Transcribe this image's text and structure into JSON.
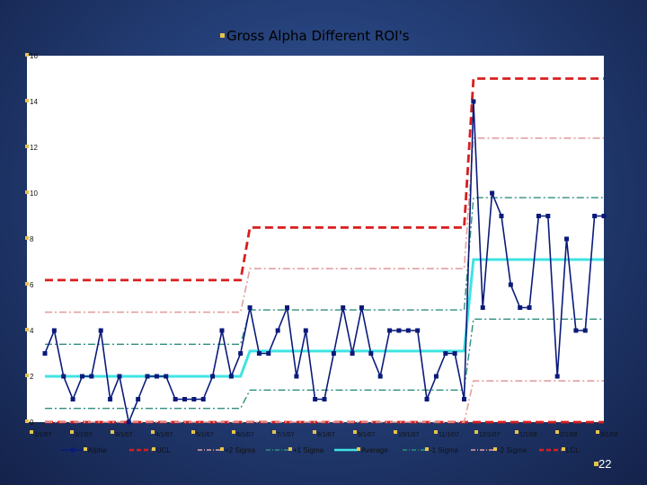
{
  "slide": {
    "page_number": "22"
  },
  "colors": {
    "plot_bg": "#ffffff",
    "alpha": "#0a1a7a",
    "ucl": "#d91e1e",
    "two_sigma": "#e3a0a0",
    "one_sigma": "#2f8f7f",
    "average": "#3fe3e3",
    "bullet": "#e6c34a"
  },
  "chart_data": {
    "type": "line",
    "title": "Gross Alpha Different ROI's",
    "ylim": [
      0,
      16
    ],
    "yticks": [
      "0",
      "2",
      "4",
      "6",
      "8",
      "10",
      "12",
      "14",
      "16"
    ],
    "x_tick_labels": [
      "1/1/07",
      "2/1/07",
      "3/1/07",
      "4/1/07",
      "5/1/07",
      "6/1/07",
      "7/1/07",
      "8/1/07",
      "9/1/07",
      "10/1/07",
      "11/1/07",
      "12/1/07",
      "1/1/08",
      "2/1/08",
      "3/1/08"
    ],
    "x": [
      0,
      1,
      2,
      3,
      4,
      5,
      6,
      7,
      8,
      9,
      10,
      11,
      12,
      13,
      14,
      15,
      16,
      17,
      18,
      19,
      20,
      21,
      22,
      23,
      24,
      25,
      26,
      27,
      28,
      29,
      30,
      31,
      32,
      33,
      34,
      35,
      36,
      37,
      38,
      39,
      40,
      41,
      42,
      43,
      44,
      45,
      46,
      47,
      48,
      49,
      50,
      51,
      52,
      53,
      54,
      55,
      56,
      57,
      58,
      59,
      60
    ],
    "grid": false,
    "legend_position": "bottom",
    "series": [
      {
        "name": "Alpha",
        "style": "line-marker",
        "values": [
          3,
          4,
          2,
          1,
          2,
          2,
          4,
          1,
          2,
          0,
          1,
          2,
          2,
          2,
          1,
          1,
          1,
          1,
          2,
          4,
          2,
          3,
          5,
          3,
          3,
          4,
          5,
          2,
          4,
          1,
          1,
          3,
          5,
          3,
          5,
          3,
          2,
          4,
          4,
          4,
          4,
          1,
          2,
          3,
          3,
          1,
          14,
          5,
          10,
          9,
          6,
          5,
          5,
          9,
          9,
          2,
          8,
          4,
          4,
          9,
          9
        ]
      },
      {
        "name": "UCL",
        "style": "dashed",
        "values": [
          6.2,
          6.2,
          6.2,
          6.2,
          6.2,
          6.2,
          6.2,
          6.2,
          6.2,
          6.2,
          6.2,
          6.2,
          6.2,
          6.2,
          6.2,
          6.2,
          6.2,
          6.2,
          6.2,
          6.2,
          6.2,
          6.2,
          8.5,
          8.5,
          8.5,
          8.5,
          8.5,
          8.5,
          8.5,
          8.5,
          8.5,
          8.5,
          8.5,
          8.5,
          8.5,
          8.5,
          8.5,
          8.5,
          8.5,
          8.5,
          8.5,
          8.5,
          8.5,
          8.5,
          8.5,
          8.5,
          15,
          15,
          15,
          15,
          15,
          15,
          15,
          15,
          15,
          15,
          15,
          15,
          15,
          15,
          15
        ]
      },
      {
        "name": "+2 Sigma",
        "style": "dashdot-light",
        "values": [
          4.8,
          4.8,
          4.8,
          4.8,
          4.8,
          4.8,
          4.8,
          4.8,
          4.8,
          4.8,
          4.8,
          4.8,
          4.8,
          4.8,
          4.8,
          4.8,
          4.8,
          4.8,
          4.8,
          4.8,
          4.8,
          4.8,
          6.7,
          6.7,
          6.7,
          6.7,
          6.7,
          6.7,
          6.7,
          6.7,
          6.7,
          6.7,
          6.7,
          6.7,
          6.7,
          6.7,
          6.7,
          6.7,
          6.7,
          6.7,
          6.7,
          6.7,
          6.7,
          6.7,
          6.7,
          6.7,
          12.4,
          12.4,
          12.4,
          12.4,
          12.4,
          12.4,
          12.4,
          12.4,
          12.4,
          12.4,
          12.4,
          12.4,
          12.4,
          12.4,
          12.4
        ]
      },
      {
        "name": "+1 Sigma",
        "style": "dashdot",
        "values": [
          3.4,
          3.4,
          3.4,
          3.4,
          3.4,
          3.4,
          3.4,
          3.4,
          3.4,
          3.4,
          3.4,
          3.4,
          3.4,
          3.4,
          3.4,
          3.4,
          3.4,
          3.4,
          3.4,
          3.4,
          3.4,
          3.4,
          4.9,
          4.9,
          4.9,
          4.9,
          4.9,
          4.9,
          4.9,
          4.9,
          4.9,
          4.9,
          4.9,
          4.9,
          4.9,
          4.9,
          4.9,
          4.9,
          4.9,
          4.9,
          4.9,
          4.9,
          4.9,
          4.9,
          4.9,
          4.9,
          9.8,
          9.8,
          9.8,
          9.8,
          9.8,
          9.8,
          9.8,
          9.8,
          9.8,
          9.8,
          9.8,
          9.8,
          9.8,
          9.8,
          9.8
        ]
      },
      {
        "name": "Average",
        "style": "solid-thick",
        "values": [
          2,
          2,
          2,
          2,
          2,
          2,
          2,
          2,
          2,
          2,
          2,
          2,
          2,
          2,
          2,
          2,
          2,
          2,
          2,
          2,
          2,
          2,
          3.1,
          3.1,
          3.1,
          3.1,
          3.1,
          3.1,
          3.1,
          3.1,
          3.1,
          3.1,
          3.1,
          3.1,
          3.1,
          3.1,
          3.1,
          3.1,
          3.1,
          3.1,
          3.1,
          3.1,
          3.1,
          3.1,
          3.1,
          3.1,
          7.1,
          7.1,
          7.1,
          7.1,
          7.1,
          7.1,
          7.1,
          7.1,
          7.1,
          7.1,
          7.1,
          7.1,
          7.1,
          7.1,
          7.1
        ]
      },
      {
        "name": "-1 Sigma",
        "style": "dashdot",
        "values": [
          0.6,
          0.6,
          0.6,
          0.6,
          0.6,
          0.6,
          0.6,
          0.6,
          0.6,
          0.6,
          0.6,
          0.6,
          0.6,
          0.6,
          0.6,
          0.6,
          0.6,
          0.6,
          0.6,
          0.6,
          0.6,
          0.6,
          1.4,
          1.4,
          1.4,
          1.4,
          1.4,
          1.4,
          1.4,
          1.4,
          1.4,
          1.4,
          1.4,
          1.4,
          1.4,
          1.4,
          1.4,
          1.4,
          1.4,
          1.4,
          1.4,
          1.4,
          1.4,
          1.4,
          1.4,
          1.4,
          4.5,
          4.5,
          4.5,
          4.5,
          4.5,
          4.5,
          4.5,
          4.5,
          4.5,
          4.5,
          4.5,
          4.5,
          4.5,
          4.5,
          4.5
        ]
      },
      {
        "name": "-2 Sigma",
        "style": "dashdot-light",
        "values": [
          0,
          0,
          0,
          0,
          0,
          0,
          0,
          0,
          0,
          0,
          0,
          0,
          0,
          0,
          0,
          0,
          0,
          0,
          0,
          0,
          0,
          0,
          0,
          0,
          0,
          0,
          0,
          0,
          0,
          0,
          0,
          0,
          0,
          0,
          0,
          0,
          0,
          0,
          0,
          0,
          0,
          0,
          0,
          0,
          0,
          0,
          1.8,
          1.8,
          1.8,
          1.8,
          1.8,
          1.8,
          1.8,
          1.8,
          1.8,
          1.8,
          1.8,
          1.8,
          1.8,
          1.8,
          1.8
        ]
      },
      {
        "name": "LCL",
        "style": "dashed",
        "values": [
          0,
          0,
          0,
          0,
          0,
          0,
          0,
          0,
          0,
          0,
          0,
          0,
          0,
          0,
          0,
          0,
          0,
          0,
          0,
          0,
          0,
          0,
          0,
          0,
          0,
          0,
          0,
          0,
          0,
          0,
          0,
          0,
          0,
          0,
          0,
          0,
          0,
          0,
          0,
          0,
          0,
          0,
          0,
          0,
          0,
          0,
          0,
          0,
          0,
          0,
          0,
          0,
          0,
          0,
          0,
          0,
          0,
          0,
          0,
          0,
          0
        ]
      }
    ]
  }
}
